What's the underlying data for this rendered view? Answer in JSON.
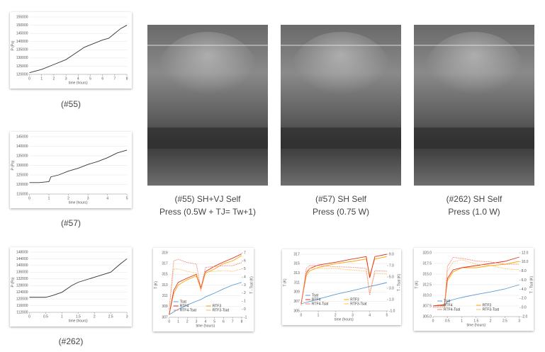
{
  "pressure_charts": [
    {
      "caption": "(#55)",
      "chart": {
        "type": "line",
        "y_label": "P (Pa)",
        "x_label": "time (hours)",
        "color": "#333333",
        "x": [
          0,
          0.5,
          1,
          2,
          3,
          3.5,
          4,
          4.5,
          5,
          6,
          6.5,
          7,
          7.5,
          8
        ],
        "values": [
          121000,
          122000,
          123000,
          126000,
          129000,
          131500,
          134000,
          136500,
          138000,
          141000,
          142000,
          145000,
          148000,
          150000
        ],
        "xlim": [
          0,
          8
        ],
        "xticks": [
          0,
          1,
          2,
          3,
          4,
          5,
          6,
          7,
          8
        ],
        "ylim": [
          120000,
          155000
        ],
        "yticks": [
          120000,
          125000,
          130000,
          135000,
          140000,
          145000,
          150000,
          155000
        ]
      }
    },
    {
      "caption": "(#57)",
      "chart": {
        "type": "line",
        "y_label": "P (Pa)",
        "x_label": "time (hours)",
        "color": "#333333",
        "x": [
          0,
          0.5,
          1,
          1.1,
          1.5,
          2,
          2.5,
          3,
          3.5,
          4,
          4.5,
          5
        ],
        "values": [
          121000,
          121000,
          121500,
          124000,
          125000,
          127000,
          128500,
          130500,
          132000,
          134000,
          136500,
          138000
        ],
        "xlim": [
          0,
          5
        ],
        "xticks": [
          0,
          1,
          2,
          3,
          4,
          5
        ],
        "ylim": [
          115000,
          145000
        ],
        "yticks": [
          115000,
          120000,
          125000,
          130000,
          135000,
          140000,
          145000
        ]
      }
    },
    {
      "caption": "(#262)",
      "chart": {
        "type": "line",
        "y_label": "P (Pa)",
        "x_label": "time (hours)",
        "color": "#333333",
        "x": [
          0,
          0.5,
          0.7,
          1,
          1.3,
          1.5,
          2,
          2.5,
          2.8,
          3
        ],
        "values": [
          121000,
          121000,
          122000,
          124000,
          128000,
          130000,
          133000,
          136000,
          141000,
          144000
        ],
        "xlim": [
          0,
          3
        ],
        "xticks": [
          0,
          0.5,
          1,
          1.5,
          2,
          2.5,
          3
        ],
        "ylim": [
          112000,
          148000
        ],
        "yticks": [
          112000,
          116000,
          120000,
          124000,
          128000,
          132000,
          136000,
          140000,
          144000,
          148000
        ]
      }
    }
  ],
  "photos": [
    {
      "caption": [
        "(#55) SH+VJ Self",
        "Press (0.5W + TJ= Tw+1)"
      ]
    },
    {
      "caption": [
        "(#57) SH Self",
        "Press (0.75 W)"
      ]
    },
    {
      "caption": [
        "(#262) SH Self",
        "Press (1.0 W)"
      ]
    }
  ],
  "temperature_charts": [
    {
      "type": "line",
      "y_label": "T (K)",
      "y2_label": "T - Tsat (K)",
      "x_label": "time (hours)",
      "x": [
        0,
        0.5,
        1,
        2,
        3,
        3.5,
        4,
        5,
        6,
        7,
        8
      ],
      "series": [
        {
          "name": "Tsat",
          "color": "#5b9bd5",
          "values": [
            307.5,
            308,
            308.5,
            309.3,
            310,
            310.3,
            310.8,
            311.5,
            312.3,
            313,
            313.5
          ]
        },
        {
          "name": "RTF3",
          "color": "#ffa500",
          "values": [
            307.5,
            311.5,
            313,
            314,
            314.7,
            312.3,
            315.2,
            316,
            317,
            317.5,
            318.5
          ]
        },
        {
          "name": "RTF4",
          "color": "#e03020",
          "values": [
            307.5,
            312,
            313.5,
            314.3,
            315,
            312.5,
            315.5,
            316.5,
            317.3,
            318,
            318.8
          ]
        },
        {
          "name": "RTF3-Tsat",
          "color": "#f5c26b",
          "axis": "y2",
          "values": [
            0,
            5,
            5,
            4.7,
            4.5,
            2.2,
            4.6,
            4.7,
            4.8,
            4.7,
            5
          ]
        },
        {
          "name": "RTF4-Tsat",
          "color": "#f08070",
          "axis": "y2",
          "values": [
            0,
            6,
            6.2,
            5.8,
            5.6,
            2.5,
            5.2,
            5.3,
            5.4,
            5.4,
            5.8
          ]
        }
      ],
      "xlim": [
        0,
        8
      ],
      "xticks": [
        0,
        1,
        2,
        3,
        4,
        5,
        6,
        7,
        8
      ],
      "ylim": [
        307,
        319
      ],
      "yticks": [
        307,
        309,
        311,
        313,
        315,
        317,
        319
      ],
      "y2lim": [
        -1,
        7
      ],
      "y2ticks": [
        -1,
        0,
        1,
        2,
        3,
        4,
        5,
        6,
        7
      ]
    },
    {
      "type": "line",
      "y_label": "T (K)",
      "y2_label": "T - Tsat (K)",
      "x_label": "time (hours)",
      "x": [
        0,
        0.3,
        0.5,
        1,
        2,
        3,
        3.8,
        4,
        4.3,
        5
      ],
      "series": [
        {
          "name": "Tsat",
          "color": "#5b9bd5",
          "values": [
            306.5,
            306.8,
            307,
            307.5,
            308.5,
            309.3,
            310,
            310.2,
            310.4,
            311
          ]
        },
        {
          "name": "RTF3",
          "color": "#ffa500",
          "values": [
            306.5,
            312.5,
            313.5,
            314.2,
            315,
            315.5,
            316,
            312.5,
            316,
            316.5
          ]
        },
        {
          "name": "RTF4",
          "color": "#e03020",
          "values": [
            306.5,
            313,
            314,
            314.7,
            315.3,
            316,
            316.5,
            312,
            316.5,
            317
          ]
        },
        {
          "name": "RTF3-Tsat",
          "color": "#f5c26b",
          "axis": "y2",
          "values": [
            0,
            6,
            6.5,
            6.5,
            6.5,
            6.2,
            6,
            2.3,
            5.6,
            5.5
          ]
        },
        {
          "name": "RTF4-Tsat",
          "color": "#f08070",
          "axis": "y2",
          "values": [
            0,
            6.5,
            7,
            7,
            6.8,
            6.7,
            6.5,
            1.8,
            6.1,
            6
          ]
        }
      ],
      "xlim": [
        0,
        5
      ],
      "xticks": [
        0,
        1,
        2,
        3,
        4,
        5
      ],
      "ylim": [
        305,
        317
      ],
      "yticks": [
        305,
        307,
        309,
        311,
        313,
        315,
        317
      ],
      "y2lim": [
        -1,
        9
      ],
      "y2ticks": [
        {
          "value": -1,
          "label": "-1.0"
        },
        {
          "value": 1,
          "label": "1.0"
        },
        {
          "value": 3,
          "label": "3.0"
        },
        {
          "value": 5,
          "label": "5.0"
        },
        {
          "value": 7,
          "label": "7.0"
        },
        {
          "value": 9,
          "label": "9.0"
        }
      ]
    },
    {
      "type": "line",
      "y_label": "T (K)",
      "y2_label": "T - Tsat (K)",
      "x_label": "time (hours)",
      "x": [
        0,
        0.4,
        0.5,
        0.7,
        1,
        1.5,
        2,
        2.5,
        3
      ],
      "series": [
        {
          "name": "Tsat",
          "color": "#5b9bd5",
          "values": [
            307.5,
            307.6,
            308.5,
            309,
            309.5,
            310.2,
            310.8,
            311.5,
            312.5
          ]
        },
        {
          "name": "RTF3",
          "color": "#ffa500",
          "values": [
            307.5,
            307.7,
            313.5,
            315.5,
            316.5,
            316.5,
            317,
            317.3,
            318
          ]
        },
        {
          "name": "RTF4",
          "color": "#e03020",
          "values": [
            307.5,
            307.8,
            314,
            316,
            316.5,
            317,
            317.5,
            318,
            319
          ]
        },
        {
          "name": "RTF3-Tsat",
          "color": "#f5c26b",
          "axis": "y2",
          "values": [
            0,
            0.1,
            8,
            10,
            10.5,
            9.5,
            9.2,
            8.5,
            8.3
          ]
        },
        {
          "name": "RTF4-Tsat",
          "color": "#f08070",
          "axis": "y2",
          "values": [
            0,
            0.2,
            9,
            11,
            10.8,
            10.2,
            10,
            9.5,
            9.5
          ]
        }
      ],
      "xlim": [
        0,
        3
      ],
      "xticks": [
        0,
        0.5,
        1,
        1.5,
        2,
        2.5,
        3
      ],
      "ylim": [
        305,
        320
      ],
      "yticks": [
        {
          "value": 305,
          "label": "305.0"
        },
        307.5,
        {
          "value": 310,
          "label": "310.0"
        },
        312.5,
        {
          "value": 315,
          "label": "315.0"
        },
        317.5,
        {
          "value": 320,
          "label": "320.0"
        }
      ],
      "y2lim": [
        -2,
        12
      ],
      "y2ticks": [
        {
          "value": -2,
          "label": "-2.0"
        },
        {
          "value": 0,
          "label": "0.0"
        },
        {
          "value": 2,
          "label": "2.0"
        },
        {
          "value": 4,
          "label": "4.0"
        },
        {
          "value": 6,
          "label": "6.0"
        },
        {
          "value": 8,
          "label": "8.0"
        },
        {
          "value": 10,
          "label": "10.0"
        },
        {
          "value": 12,
          "label": "12.0"
        }
      ]
    }
  ]
}
